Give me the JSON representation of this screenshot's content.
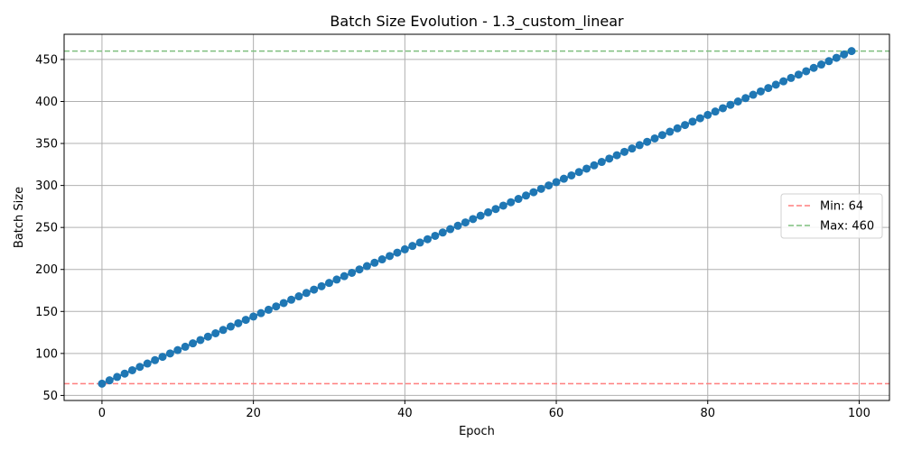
{
  "chart_data": {
    "type": "line",
    "title": "Batch Size Evolution - 1.3_custom_linear",
    "xlabel": "Epoch",
    "ylabel": "Batch Size",
    "xlim": [
      -5,
      104
    ],
    "ylim": [
      44,
      480
    ],
    "xticks": [
      0,
      20,
      40,
      60,
      80,
      100
    ],
    "yticks": [
      50,
      100,
      150,
      200,
      250,
      300,
      350,
      400,
      450
    ],
    "grid": true,
    "legend_placement": "center-right",
    "series": [
      {
        "color": "#1f77b4",
        "marker": "circle",
        "x_start": 0,
        "x_end": 99,
        "y_start": 64,
        "y_end": 460
      }
    ],
    "reference_lines": [
      {
        "name": "Min: 64",
        "y": 64,
        "color": "#ff7f7f",
        "style": "dashed"
      },
      {
        "name": "Max: 460",
        "y": 460,
        "color": "#7fbf7f",
        "style": "dashed"
      }
    ]
  }
}
